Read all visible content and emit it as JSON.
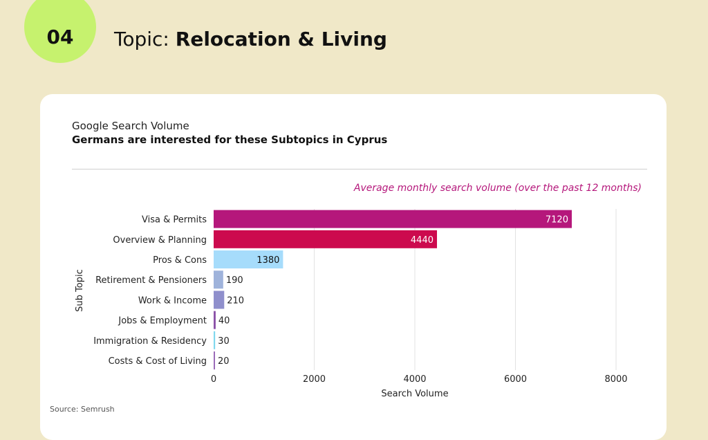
{
  "header": {
    "badge_number": "04",
    "topic_prefix": "Topic: ",
    "topic_name": "Relocation & Living"
  },
  "card": {
    "subtitle": "Google Search Volume",
    "heading": "Germans are interested for these Subtopics in Cyprus",
    "note": "Average monthly search volume (over the past 12 months)",
    "source": "Source: Semrush"
  },
  "chart_data": {
    "type": "bar",
    "orientation": "horizontal",
    "categories": [
      "Visa & Permits",
      "Overview & Planning",
      "Pros & Cons",
      "Retirement & Pensioners",
      "Work & Income",
      "Jobs & Employment",
      "Immigration & Residency",
      "Costs & Cost of Living"
    ],
    "values": [
      7120,
      4440,
      1380,
      190,
      210,
      40,
      30,
      20
    ],
    "colors": [
      "#b5177b",
      "#cc0a4e",
      "#a6dcfb",
      "#9fb3db",
      "#8f8fcc",
      "#8b52a8",
      "#7fd7ee",
      "#9b6bb8"
    ],
    "xlabel": "Search Volume",
    "ylabel": "Sub Topic",
    "xlim": [
      0,
      8000
    ],
    "xticks": [
      0,
      2000,
      4000,
      6000,
      8000
    ],
    "grid": "vertical"
  }
}
